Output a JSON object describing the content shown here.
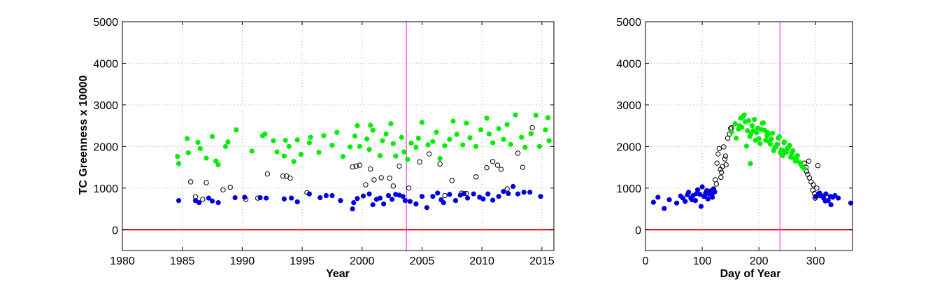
{
  "chart_data": [
    {
      "type": "scatter",
      "title": "",
      "xlabel": "Year",
      "ylabel": "TC Greenness x 10000",
      "xlim": [
        1980,
        2016
      ],
      "ylim": [
        -500,
        5000
      ],
      "xticks": [
        1980,
        1985,
        1990,
        1995,
        2000,
        2005,
        2010,
        2015
      ],
      "yticks": [
        0,
        1000,
        2000,
        3000,
        4000,
        5000
      ],
      "grid": true,
      "colors": {
        "green": "#00ee00",
        "blue": "#0000dd",
        "open": "#000000",
        "zero_line": "#dd0000",
        "vline": "#ff33ff"
      },
      "zero_line": 0,
      "vertical_line_x": 2003.7,
      "series": [
        {
          "marker": "filled-green",
          "x": [
            1984.6,
            1984.7,
            1985.4,
            1985.5,
            1986.3,
            1986.5,
            1987.0,
            1987.5,
            1987.8,
            1988.0,
            1988.6,
            1988.8,
            1989.5,
            1990.8,
            1991.7,
            1991.9,
            1992.6,
            1992.9,
            1993.5,
            1993.6,
            1993.9,
            1994.3,
            1994.6,
            1994.9,
            1995.6,
            1995.7,
            1996.4,
            1996.8,
            1997.5,
            1997.9,
            1998.4,
            1999.0,
            1999.4,
            1999.6,
            1999.8,
            2000.4,
            2000.6,
            2000.7,
            2000.9,
            2001.5,
            2001.7,
            2002.0,
            2002.4,
            2002.6,
            2002.8,
            2003.3,
            2003.5,
            2003.8,
            2004.1,
            2004.5,
            2004.7,
            2005.0,
            2005.5,
            2005.9,
            2006.2,
            2006.5,
            2006.9,
            2007.3,
            2007.6,
            2007.9,
            2008.4,
            2008.7,
            2009.0,
            2009.5,
            2009.9,
            2010.4,
            2010.6,
            2010.9,
            2011.4,
            2011.8,
            2012.1,
            2012.4,
            2012.8,
            2013.3,
            2013.6,
            2014.1,
            2014.5,
            2014.8,
            2015.3,
            2015.5,
            2015.6
          ],
          "y": [
            1760,
            1590,
            2190,
            1850,
            2100,
            1950,
            1720,
            2240,
            1650,
            1560,
            2000,
            2110,
            2400,
            1890,
            2260,
            2300,
            2140,
            1870,
            1770,
            2150,
            2000,
            1640,
            2160,
            1810,
            2090,
            2220,
            1860,
            2260,
            2030,
            2340,
            1760,
            1990,
            2250,
            2500,
            2000,
            2180,
            1930,
            2510,
            2390,
            1780,
            2140,
            2300,
            2550,
            2070,
            1770,
            2220,
            1870,
            1690,
            2080,
            1980,
            2200,
            2580,
            2040,
            2120,
            2340,
            1710,
            2020,
            2170,
            2610,
            2290,
            2040,
            2560,
            2210,
            2000,
            2400,
            2680,
            2300,
            2090,
            2430,
            2170,
            2530,
            2050,
            2760,
            2220,
            1980,
            2310,
            2750,
            2000,
            2400,
            2690,
            2140
          ]
        },
        {
          "marker": "filled-blue",
          "x": [
            1984.7,
            1986.1,
            1986.4,
            1987.2,
            1987.5,
            1988.0,
            1989.4,
            1990.2,
            1991.5,
            1992.0,
            1993.5,
            1994.1,
            1994.6,
            1995.6,
            1996.5,
            1997.0,
            1997.5,
            1998.2,
            1999.2,
            1999.3,
            1999.6,
            2000.1,
            2000.6,
            2000.9,
            2001.2,
            2001.5,
            2001.8,
            2002.2,
            2002.5,
            2002.8,
            2003.1,
            2003.4,
            2003.6,
            2004.0,
            2004.5,
            2005.0,
            2005.4,
            2005.9,
            2006.3,
            2006.6,
            2006.8,
            2007.3,
            2007.8,
            2008.2,
            2008.5,
            2008.8,
            2009.3,
            2009.8,
            2010.1,
            2010.5,
            2010.9,
            2011.4,
            2011.8,
            2012.2,
            2012.6,
            2013.0,
            2013.5,
            2014.0,
            2014.9
          ],
          "y": [
            700,
            700,
            650,
            760,
            690,
            650,
            770,
            780,
            770,
            760,
            740,
            760,
            670,
            860,
            770,
            820,
            820,
            700,
            500,
            650,
            750,
            810,
            860,
            600,
            730,
            760,
            620,
            820,
            730,
            850,
            830,
            800,
            700,
            680,
            620,
            800,
            530,
            800,
            880,
            720,
            650,
            850,
            700,
            830,
            870,
            760,
            860,
            780,
            740,
            860,
            710,
            800,
            920,
            870,
            1040,
            860,
            900,
            900,
            800
          ]
        },
        {
          "marker": "open-black",
          "x": [
            1985.7,
            1986.1,
            1986.7,
            1987.0,
            1988.4,
            1989.0,
            1990.3,
            1991.3,
            1992.1,
            1993.4,
            1993.7,
            1994.0,
            1995.4,
            1999.2,
            1999.5,
            1999.8,
            2000.3,
            2000.7,
            2001.0,
            2001.6,
            2002.3,
            2002.6,
            2003.1,
            2003.9,
            2004.8,
            2005.6,
            2006.5,
            2006.9,
            2007.5,
            2008.3,
            2008.7,
            2009.5,
            2010.4,
            2010.9,
            2011.3,
            2011.6,
            2012.1,
            2013.0,
            2013.4,
            2014.2
          ],
          "y": [
            1150,
            790,
            730,
            1130,
            960,
            1020,
            730,
            760,
            1340,
            1290,
            1290,
            1240,
            890,
            1510,
            1530,
            1550,
            1080,
            1460,
            1200,
            1250,
            1240,
            1050,
            1530,
            1000,
            1630,
            1820,
            1580,
            820,
            1180,
            880,
            870,
            1270,
            1490,
            1640,
            1550,
            1450,
            980,
            1840,
            1500,
            2450
          ]
        }
      ]
    },
    {
      "type": "scatter",
      "title": "",
      "xlabel": "Day of Year",
      "ylabel": "",
      "xlim": [
        0,
        365
      ],
      "ylim": [
        -500,
        5000
      ],
      "xticks": [
        0,
        100,
        200,
        300
      ],
      "yticks": [
        0,
        1000,
        2000,
        3000,
        4000,
        5000
      ],
      "grid": true,
      "colors": {
        "green": "#00ee00",
        "blue": "#0000dd",
        "open": "#000000",
        "zero_line": "#dd0000",
        "vline": "#ff33ff"
      },
      "zero_line": 0,
      "vertical_line_x": 237,
      "series": [
        {
          "marker": "filled-green",
          "x": [
            152,
            158,
            164,
            168,
            172,
            176,
            180,
            184,
            188,
            192,
            196,
            200,
            204,
            208,
            212,
            216,
            220,
            224,
            228,
            232,
            236,
            240,
            244,
            248,
            252,
            256,
            260,
            264,
            268,
            272,
            276,
            280,
            160,
            170,
            178,
            186,
            194,
            202,
            210,
            218,
            226,
            234,
            242,
            250,
            258,
            266,
            274,
            166,
            182,
            198,
            214,
            230,
            246,
            262,
            174,
            190,
            206,
            222,
            238,
            254,
            185,
            215,
            245
          ],
          "y": [
            2350,
            2550,
            2420,
            2680,
            2720,
            2600,
            2380,
            2240,
            2500,
            2650,
            2330,
            2190,
            2410,
            2570,
            2150,
            2280,
            2060,
            2320,
            1980,
            2050,
            2240,
            1920,
            2090,
            1860,
            1980,
            1740,
            1900,
            1650,
            1780,
            1610,
            1520,
            1470,
            2200,
            2460,
            2010,
            2300,
            2150,
            2070,
            2390,
            2120,
            1900,
            2200,
            1780,
            1950,
            1840,
            1700,
            1580,
            2500,
            2620,
            2440,
            2260,
            1990,
            1880,
            1720,
            2760,
            2380,
            2560,
            2180,
            1850,
            2030,
            1590,
            2340,
            2110
          ]
        },
        {
          "marker": "filled-blue",
          "x": [
            14,
            22,
            33,
            42,
            55,
            62,
            70,
            76,
            80,
            84,
            88,
            92,
            96,
            100,
            103,
            106,
            110,
            114,
            117,
            120,
            66,
            74,
            82,
            90,
            98,
            104,
            108,
            112,
            118,
            122,
            300,
            305,
            310,
            314,
            318,
            322,
            326,
            330,
            334,
            340,
            307,
            317,
            327,
            362
          ],
          "y": [
            660,
            780,
            510,
            720,
            640,
            810,
            680,
            900,
            760,
            820,
            700,
            960,
            850,
            1030,
            800,
            880,
            740,
            930,
            830,
            980,
            760,
            840,
            720,
            870,
            560,
            800,
            940,
            860,
            780,
            910,
            790,
            850,
            820,
            760,
            860,
            700,
            800,
            780,
            820,
            760,
            880,
            690,
            600,
            640
          ]
        },
        {
          "marker": "open-black",
          "x": [
            120,
            123,
            126,
            128,
            130,
            132,
            134,
            136,
            138,
            140,
            142,
            145,
            148,
            150,
            152,
            280,
            283,
            286,
            289,
            292,
            295,
            298,
            300,
            302,
            304,
            306,
            288,
            296,
            125,
            133,
            141,
            284,
            299
          ],
          "y": [
            980,
            1200,
            1600,
            1820,
            1950,
            1450,
            1380,
            1520,
            1990,
            1700,
            1560,
            2200,
            2300,
            2430,
            2450,
            1600,
            1500,
            1330,
            1250,
            1150,
            950,
            870,
            800,
            1000,
            1540,
            820,
            1650,
            1080,
            1100,
            1260,
            1770,
            1400,
            760
          ]
        }
      ]
    }
  ]
}
